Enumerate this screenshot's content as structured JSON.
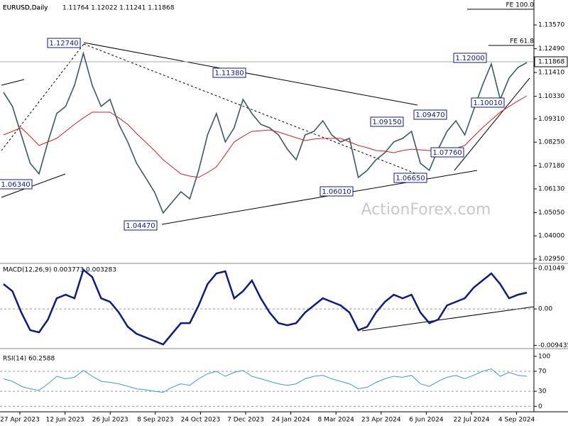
{
  "chart_data": [
    {
      "type": "line",
      "title": "EURUSD,Daily",
      "quote": "1.11764 1.12022 1.11241 1.11868",
      "watermark": "ActionForex.com",
      "current_label": "1.11868",
      "date_labels": [
        "27 Apr 2023",
        "12 Jun 2023",
        "26 Jul 2023",
        "8 Sep 2023",
        "24 Oct 2023",
        "7 Dec 2023",
        "24 Jan 2024",
        "8 Mar 2024",
        "23 Apr 2024",
        "6 Jun 2024",
        "22 Jul 2024",
        "4 Sep 2024"
      ],
      "annotations": [
        "1.12740",
        "1.11380",
        "1.06340",
        "1.04470",
        "1.06010",
        "1.06650",
        "1.09150",
        "1.09470",
        "1.07760",
        "1.10010",
        "1.12000",
        "FE 100.0",
        "FE 61.8"
      ],
      "ylim": [
        1.0278,
        1.147
      ],
      "yticks": [
        {
          "value": 1.1357,
          "label": "1.13570"
        },
        {
          "value": 1.1249,
          "label": "1.12490"
        },
        {
          "value": 1.1141,
          "label": "1.11410"
        },
        {
          "value": 1.1033,
          "label": "1.10330"
        },
        {
          "value": 1.0931,
          "label": "1.09310"
        },
        {
          "value": 1.0825,
          "label": "1.08250"
        },
        {
          "value": 1.0718,
          "label": "1.07180"
        },
        {
          "value": 1.0613,
          "label": "1.06130"
        },
        {
          "value": 1.0505,
          "label": "1.05050"
        },
        {
          "value": 1.04,
          "label": "1.04000"
        },
        {
          "value": 1.0295,
          "label": "1.02950"
        }
      ],
      "series": [
        {
          "color": "#3c5a5e",
          "values": [
            1.1051,
            1.0987,
            1.0858,
            1.0729,
            1.0681,
            1.0826,
            1.0955,
            1.0987,
            1.1083,
            1.1228,
            1.1083,
            1.0987,
            1.1019,
            1.0906,
            1.0826,
            1.0729,
            1.0665,
            1.06,
            1.0504,
            1.0552,
            1.06,
            1.0568,
            1.0697,
            1.0858,
            1.0955,
            1.0826,
            1.089,
            1.1019,
            1.0955,
            1.0906,
            1.089,
            1.0858,
            1.0793,
            1.0745,
            1.0858,
            1.0874,
            1.0922,
            1.0858,
            1.0826,
            1.0842,
            1.0665,
            1.0697,
            1.0745,
            1.0777,
            1.0826,
            1.0842,
            1.0874,
            1.0729,
            1.0697,
            1.0793,
            1.0874,
            1.0922,
            1.0858,
            1.0971,
            1.1083,
            1.118,
            1.1019,
            1.1116,
            1.1164,
            1.1186
          ]
        },
        {
          "color": "#d42020",
          "values": [
            1.0858,
            1.0874,
            1.089,
            1.0851,
            1.081,
            1.0826,
            1.0842,
            1.0874,
            1.0906,
            1.0935,
            1.0961,
            1.0961,
            1.0961,
            1.0935,
            1.0906,
            1.0864,
            1.0826,
            1.0787,
            1.0745,
            1.0713,
            1.0681,
            1.0671,
            1.0665,
            1.0687,
            1.0713,
            1.0768,
            1.0826,
            1.0851,
            1.0874,
            1.0877,
            1.088,
            1.0871,
            1.0858,
            1.0845,
            1.0832,
            1.0839,
            1.0842,
            1.0842,
            1.0842,
            1.0826,
            1.081,
            1.08,
            1.0787,
            1.0784,
            1.0777,
            1.0787,
            1.0793,
            1.079,
            1.0787,
            1.0787,
            1.0784,
            1.0797,
            1.081,
            1.0851,
            1.089,
            1.0926,
            1.0961,
            1.0987,
            1.1012,
            1.1035
          ]
        }
      ]
    },
    {
      "type": "line",
      "title": "MACD(12,26,9) 0.003773 0.003283",
      "ylim": [
        -0.0101,
        0.0116
      ],
      "yticks": [
        0.01049,
        {
          "value": 0,
          "label": "0.00"
        },
        -0.009435
      ],
      "series": [
        {
          "color": "#101a80",
          "values": [
            0.00644,
            0.0046,
            -0.00092,
            -0.00552,
            -0.00607,
            -0.00276,
            0.00276,
            0.00368,
            0.00276,
            0.01012,
            0.00828,
            0.00276,
            0.00184,
            -0.00092,
            -0.0046,
            -0.00644,
            -0.00736,
            -0.00828,
            -0.0092,
            -0.00644,
            -0.00368,
            -0.00368,
            0.00092,
            0.00644,
            0.0092,
            0.00975,
            0.00276,
            0.0046,
            0.00736,
            0.00276,
            -0.00092,
            -0.00368,
            -0.00423,
            -0.00368,
            -0.00092,
            0.00092,
            0.00276,
            0.00184,
            0.00092,
            -0.00092,
            -0.00552,
            -0.0046,
            -0.00092,
            0.00184,
            0.00368,
            0.00276,
            0.00368,
            -0.00092,
            -0.00368,
            -0.00276,
            0.00092,
            0.00184,
            0.00276,
            0.00552,
            0.00736,
            0.0092,
            0.00644,
            0.00276,
            0.00368,
            0.00423
          ]
        }
      ]
    },
    {
      "type": "line",
      "title": "RSI(14) 60.2588",
      "ylim": [
        -11,
        114
      ],
      "yticks": [
        100,
        70,
        30,
        0
      ],
      "series": [
        {
          "color": "#3d9bd0",
          "values": [
            55,
            50,
            40,
            35,
            32,
            45,
            60,
            55,
            58,
            72,
            60,
            50,
            48,
            45,
            40,
            35,
            33,
            30,
            28,
            38,
            45,
            42,
            55,
            65,
            70,
            60,
            68,
            72,
            60,
            55,
            50,
            45,
            42,
            45,
            55,
            60,
            62,
            55,
            50,
            45,
            35,
            38,
            48,
            55,
            60,
            58,
            62,
            45,
            40,
            50,
            58,
            62,
            55,
            62,
            70,
            75,
            60,
            68,
            62,
            60
          ]
        }
      ]
    }
  ]
}
